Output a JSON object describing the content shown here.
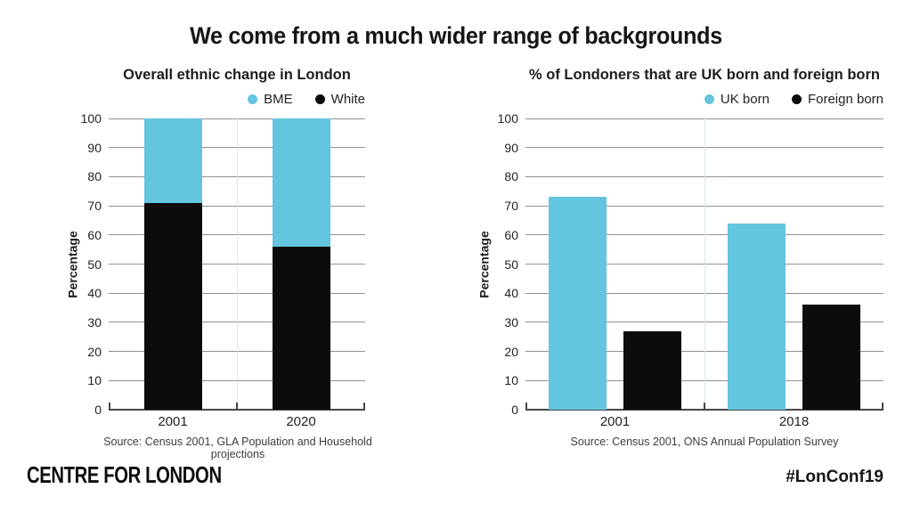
{
  "page": {
    "title": "We come from a much wider range of backgrounds",
    "footer_left": "CENTRE FOR LONDON",
    "footer_right": "#LonConf19"
  },
  "colors": {
    "blue": "#63c5de",
    "black": "#0c0c0c",
    "grid": "#919191",
    "divider": "#d7e8f0",
    "axis": "#474747"
  },
  "chart_data": [
    {
      "type": "bar",
      "variant": "stacked",
      "title": "Overall ethnic change in London",
      "categories": [
        "2001",
        "2020"
      ],
      "series": [
        {
          "name": "White",
          "color_key": "black",
          "values": [
            71,
            56
          ]
        },
        {
          "name": "BME",
          "color_key": "blue",
          "values": [
            29,
            44
          ]
        }
      ],
      "legend": [
        {
          "label": "BME",
          "color_key": "blue"
        },
        {
          "label": "White",
          "color_key": "black"
        }
      ],
      "ylabel": "Percentage",
      "ylim": [
        0,
        100
      ],
      "yticks": [
        0,
        10,
        20,
        30,
        40,
        50,
        60,
        70,
        80,
        90,
        100
      ],
      "grid": "horizontal",
      "legend_position": "top-right",
      "source": "Source: Census 2001, GLA Population and Household projections"
    },
    {
      "type": "bar",
      "variant": "grouped",
      "title": "% of Londoners that are UK born and foreign born",
      "categories": [
        "2001",
        "2018"
      ],
      "series": [
        {
          "name": "UK born",
          "color_key": "blue",
          "values": [
            73,
            64
          ]
        },
        {
          "name": "Foreign born",
          "color_key": "black",
          "values": [
            27,
            36
          ]
        }
      ],
      "legend": [
        {
          "label": "UK born",
          "color_key": "blue"
        },
        {
          "label": "Foreign born",
          "color_key": "black"
        }
      ],
      "ylabel": "Percentage",
      "ylim": [
        0,
        100
      ],
      "yticks": [
        0,
        10,
        20,
        30,
        40,
        50,
        60,
        70,
        80,
        90,
        100
      ],
      "grid": "horizontal",
      "legend_position": "top-right",
      "source": "Source: Census 2001, ONS Annual Population Survey"
    }
  ]
}
